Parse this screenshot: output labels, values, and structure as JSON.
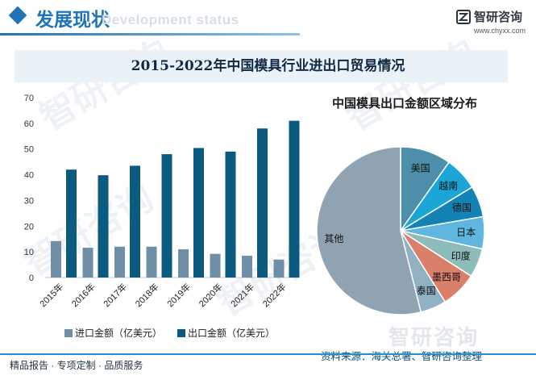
{
  "header": {
    "section_title": "发展现状",
    "section_subtitle": "Development status",
    "brand_name": "智研咨询",
    "brand_url": "www.chyxx.com",
    "watermark_text": "智研咨询"
  },
  "colors": {
    "accent_blue": "#1f73b7",
    "import_color": "#6f8fa6",
    "export_color": "#0b5a80",
    "title_band": "#eaf1f7",
    "footer_line": "#2a8bd0"
  },
  "footer": {
    "left_text": "精品报告 · 专项定制 · 品质服务",
    "source": "资料来源：海关总署、智研咨询整理"
  },
  "chart_data": [
    {
      "type": "bar",
      "title": "2015-2022年中国模具行业进出口贸易情况",
      "categories": [
        "2015年",
        "2016年",
        "2017年",
        "2018年",
        "2019年",
        "2020年",
        "2021年",
        "2022年"
      ],
      "series": [
        {
          "name": "进口金额（亿美元）",
          "values": [
            14.2,
            11.6,
            12.0,
            12.0,
            11.0,
            9.2,
            8.5,
            7.0
          ]
        },
        {
          "name": "出口金额（亿美元）",
          "values": [
            42.0,
            39.8,
            43.5,
            48.0,
            50.4,
            49.0,
            58.0,
            61.0
          ]
        }
      ],
      "ylim": [
        0,
        70
      ],
      "yticks": [
        0,
        10,
        20,
        30,
        40,
        50,
        60,
        70
      ],
      "legend": "bottom"
    },
    {
      "type": "pie",
      "title": "中国模具出口金额区域分布",
      "labels": [
        "美国",
        "越南",
        "德国",
        "日本",
        "印度",
        "墨西哥",
        "泰国",
        "其他"
      ],
      "values": [
        9.8,
        6.5,
        6.0,
        6.2,
        5.6,
        7.0,
        5.0,
        53.9
      ],
      "colors": [
        "#4d8fab",
        "#1ba6d8",
        "#1383b5",
        "#5fb6de",
        "#8ebcbb",
        "#d97f6a",
        "#8fb1c2",
        "#8fa3b3"
      ]
    }
  ]
}
